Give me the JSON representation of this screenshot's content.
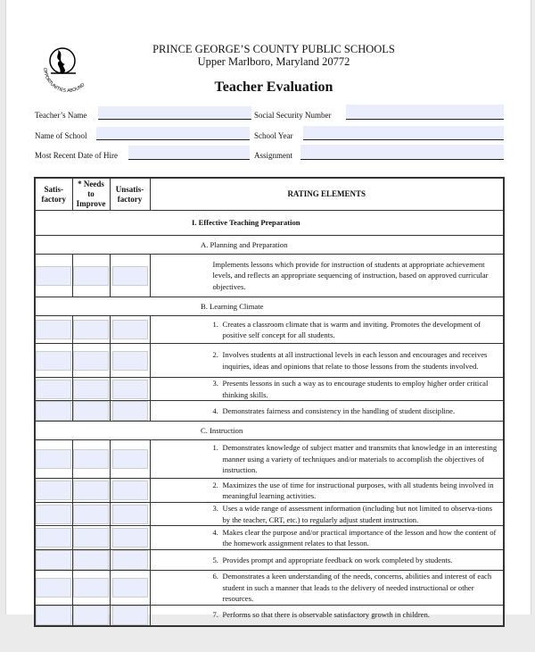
{
  "header": {
    "logo_text": "OPPORTUNITIES ABOUND",
    "org": "PRINCE GEORGE’S COUNTY PUBLIC SCHOOLS",
    "address": "Upper Marlboro, Maryland 20772",
    "title": "Teacher Evaluation"
  },
  "fields": {
    "teacher_name": "Teacher’s Name",
    "ssn": "Social Security Number",
    "school": "Name of School",
    "school_year": "School Year",
    "hire_date": "Most Recent Date of Hire",
    "assignment": "Assignment"
  },
  "table": {
    "col_satisfactory": "Satis- factory",
    "col_needs": "* Needs to Improve",
    "col_unsatisfactory": "Unsatis- factory",
    "col_elements": "RATING ELEMENTS",
    "rows": [
      {
        "type": "section",
        "text": "I.  Effective Teaching Preparation",
        "bold": true
      },
      {
        "type": "section",
        "text": "A. Planning and Preparation"
      },
      {
        "type": "item",
        "num": "",
        "text": "Implements lessons which provide for instruction of students at appropriate achievement levels,  and reflects an appropriate sequencing of instruction, based on approved curricular objectives."
      },
      {
        "type": "section",
        "text": "B. Learning Climate"
      },
      {
        "type": "item",
        "num": "1.",
        "text": "Creates a classroom climate that is warm and inviting. Promotes the development of positive self concept for all students."
      },
      {
        "type": "item",
        "num": "2.",
        "text": "Involves students at all instructional levels in each lesson and encourages and receives inquiries, ideas and opinions that relate to those lessons from the students involved."
      },
      {
        "type": "item",
        "num": "3.",
        "text": "Presents lessons in such a way as to encourage students to employ higher order critical thinking skills."
      },
      {
        "type": "item",
        "num": "4.",
        "text": "Demonstrates fairness and consistency in the handling of student discipline."
      },
      {
        "type": "section",
        "text": "C. Instruction"
      },
      {
        "type": "item",
        "num": "1.",
        "text": "Demonstrates knowledge of subject matter and transmits that knowledge in an interesting manner using a variety of techniques and/or materials to accomplish the objectives of instruction."
      },
      {
        "type": "item",
        "num": "2.",
        "text": "Maximizes the use of time for instructional purposes, with all students being involved in meaningful learning activities."
      },
      {
        "type": "item",
        "num": "3.",
        "text": "Uses a wide range of assessment information (including but not limited to observa-tions by the teacher, CRT, etc.) to regularly adjust student instruction."
      },
      {
        "type": "item",
        "num": "4.",
        "text": "Makes clear the purpose and/or practical importance of the lesson and how the content of the homework assignment relates to that lesson."
      },
      {
        "type": "item",
        "num": "5.",
        "text": "Provides prompt and appropriate feedback on work completed by students."
      },
      {
        "type": "item",
        "num": "6.",
        "text": "Demonstrates a keen understanding of the needs, concerns, abilities and interest of each student in such a manner that leads to the delivery of needed instructional or other resources."
      },
      {
        "type": "item",
        "num": "7.",
        "text": "Performs so that there is observable satisfactory growth in children."
      }
    ]
  }
}
